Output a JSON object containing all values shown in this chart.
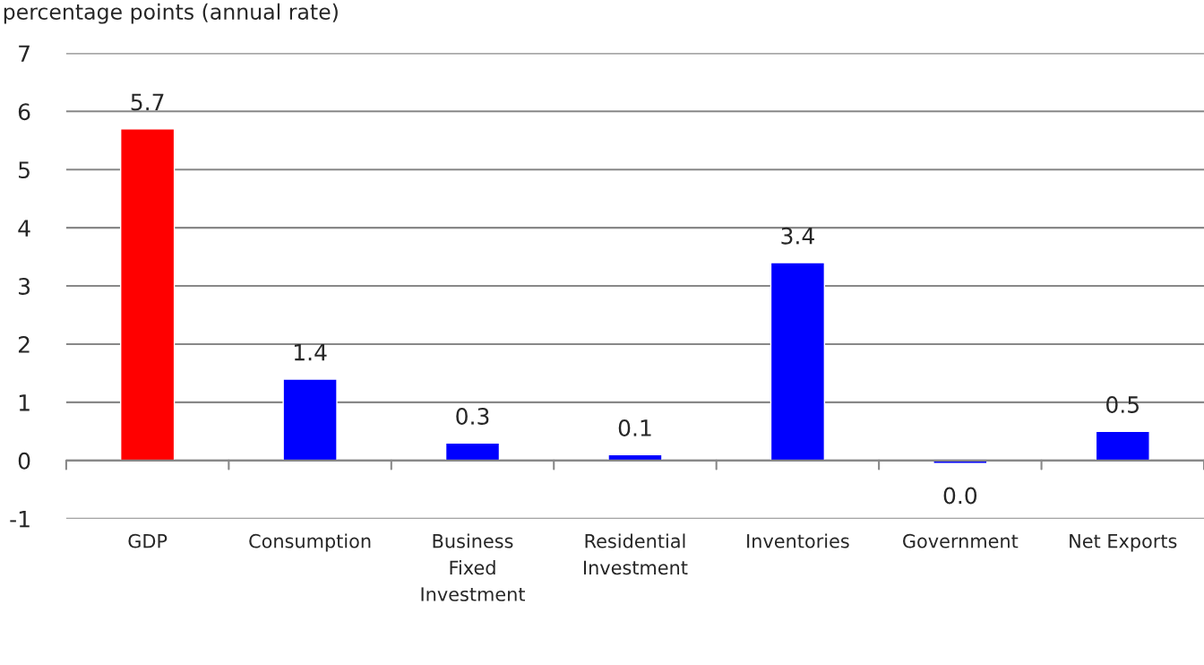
{
  "chart_data": {
    "type": "bar",
    "ylabel": "percentage points (annual rate)",
    "categories": [
      "GDP",
      "Consumption",
      "Business Fixed Investment",
      "Residential Investment",
      "Inventories",
      "Government",
      "Net Exports"
    ],
    "values": [
      5.7,
      1.4,
      0.3,
      0.1,
      3.4,
      -0.05,
      0.5
    ],
    "value_labels": [
      "5.7",
      "1.4",
      "0.3",
      "0.1",
      "3.4",
      "0.0",
      "0.5"
    ],
    "colors": [
      "#ff0000",
      "#0000ff",
      "#0000ff",
      "#0000ff",
      "#0000ff",
      "#0000ff",
      "#0000ff"
    ],
    "ylim": [
      -1,
      7
    ],
    "yticks": [
      -1,
      0,
      1,
      2,
      3,
      4,
      5,
      6,
      7
    ],
    "grid": "y"
  }
}
